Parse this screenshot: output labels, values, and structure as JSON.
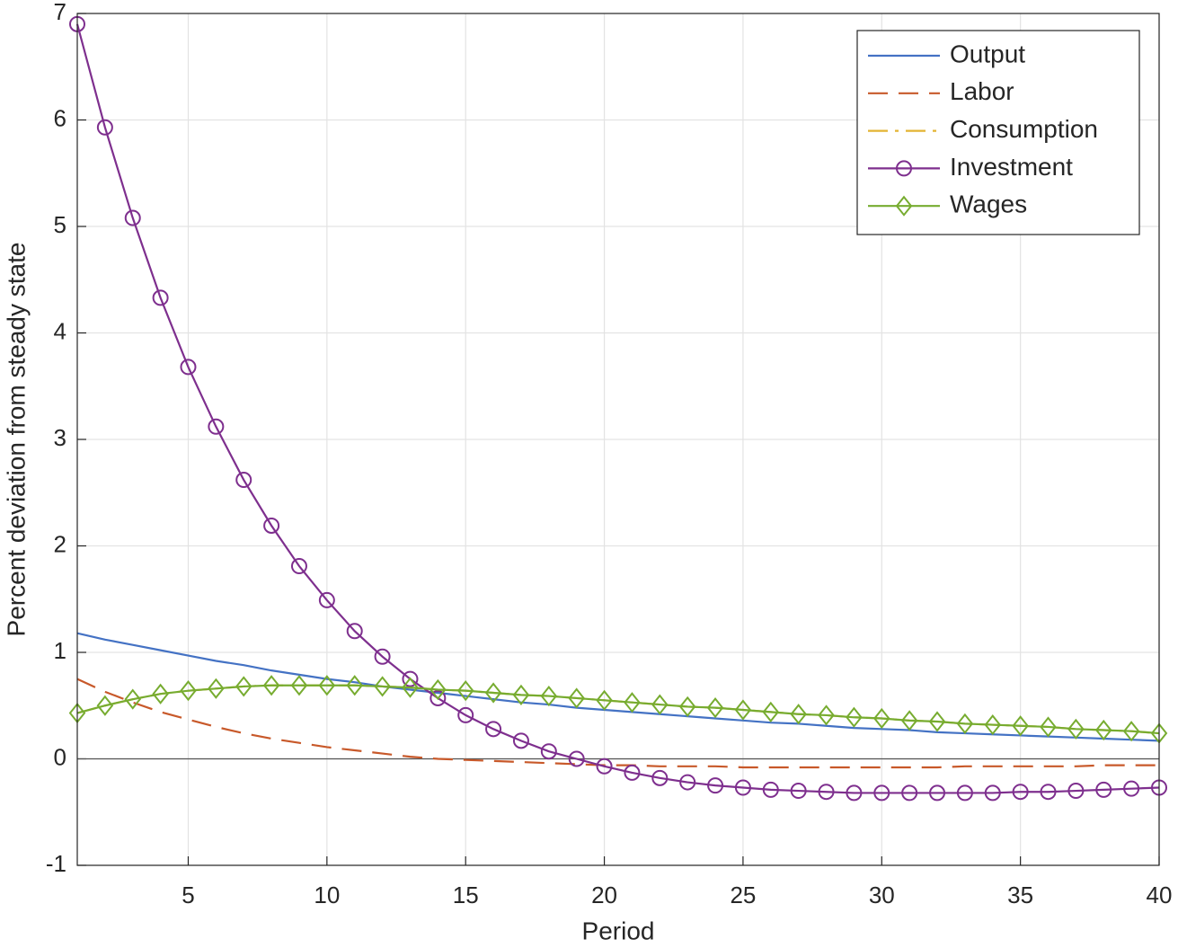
{
  "chart_data": {
    "type": "line",
    "xlabel": "Period",
    "ylabel": "Percent deviation from steady state",
    "x": [
      1,
      2,
      3,
      4,
      5,
      6,
      7,
      8,
      9,
      10,
      11,
      12,
      13,
      14,
      15,
      16,
      17,
      18,
      19,
      20,
      21,
      22,
      23,
      24,
      25,
      26,
      27,
      28,
      29,
      30,
      31,
      32,
      33,
      34,
      35,
      36,
      37,
      38,
      39,
      40
    ],
    "xlim": [
      1,
      40
    ],
    "xticks": [
      5,
      10,
      15,
      20,
      25,
      30,
      35,
      40
    ],
    "ylim": [
      -1,
      7
    ],
    "yticks": [
      -1,
      0,
      1,
      2,
      3,
      4,
      5,
      6,
      7
    ],
    "grid": true,
    "legend": "upper right",
    "series": [
      {
        "name": "Output",
        "color": "#4472c4",
        "style": "solid",
        "marker": "none",
        "values": [
          1.18,
          1.12,
          1.07,
          1.02,
          0.97,
          0.92,
          0.88,
          0.83,
          0.79,
          0.75,
          0.72,
          0.68,
          0.65,
          0.62,
          0.59,
          0.56,
          0.53,
          0.51,
          0.48,
          0.46,
          0.44,
          0.42,
          0.4,
          0.38,
          0.36,
          0.34,
          0.33,
          0.31,
          0.29,
          0.28,
          0.27,
          0.25,
          0.24,
          0.23,
          0.22,
          0.21,
          0.2,
          0.19,
          0.18,
          0.17
        ]
      },
      {
        "name": "Labor",
        "color": "#c8592a",
        "style": "dashed",
        "marker": "none",
        "values": [
          0.75,
          0.63,
          0.53,
          0.44,
          0.37,
          0.3,
          0.24,
          0.19,
          0.15,
          0.11,
          0.08,
          0.05,
          0.02,
          0.0,
          -0.01,
          -0.02,
          -0.03,
          -0.04,
          -0.05,
          -0.06,
          -0.06,
          -0.07,
          -0.07,
          -0.07,
          -0.08,
          -0.08,
          -0.08,
          -0.08,
          -0.08,
          -0.08,
          -0.08,
          -0.08,
          -0.07,
          -0.07,
          -0.07,
          -0.07,
          -0.07,
          -0.06,
          -0.06,
          -0.06
        ]
      },
      {
        "name": "Consumption",
        "color": "#e3b433",
        "style": "dashdot",
        "marker": "none",
        "values": [
          0.43,
          0.5,
          0.56,
          0.61,
          0.64,
          0.66,
          0.68,
          0.69,
          0.69,
          0.69,
          0.69,
          0.68,
          0.67,
          0.65,
          0.64,
          0.62,
          0.6,
          0.59,
          0.57,
          0.55,
          0.53,
          0.51,
          0.49,
          0.48,
          0.46,
          0.44,
          0.42,
          0.41,
          0.39,
          0.38,
          0.36,
          0.35,
          0.33,
          0.32,
          0.31,
          0.3,
          0.28,
          0.27,
          0.26,
          0.24
        ]
      },
      {
        "name": "Investment",
        "color": "#7e2f8e",
        "style": "solid",
        "marker": "circle",
        "values": [
          6.9,
          5.93,
          5.08,
          4.33,
          3.68,
          3.12,
          2.62,
          2.19,
          1.81,
          1.49,
          1.2,
          0.96,
          0.75,
          0.57,
          0.41,
          0.28,
          0.17,
          0.07,
          0.0,
          -0.07,
          -0.13,
          -0.18,
          -0.22,
          -0.25,
          -0.27,
          -0.29,
          -0.3,
          -0.31,
          -0.32,
          -0.32,
          -0.32,
          -0.32,
          -0.32,
          -0.32,
          -0.31,
          -0.31,
          -0.3,
          -0.29,
          -0.28,
          -0.27
        ]
      },
      {
        "name": "Wages",
        "color": "#77ac30",
        "style": "solid",
        "marker": "diamond",
        "values": [
          0.43,
          0.5,
          0.56,
          0.61,
          0.64,
          0.66,
          0.68,
          0.69,
          0.69,
          0.69,
          0.69,
          0.68,
          0.67,
          0.65,
          0.64,
          0.62,
          0.6,
          0.59,
          0.57,
          0.55,
          0.53,
          0.51,
          0.49,
          0.48,
          0.46,
          0.44,
          0.42,
          0.41,
          0.39,
          0.38,
          0.36,
          0.35,
          0.33,
          0.32,
          0.31,
          0.3,
          0.28,
          0.27,
          0.26,
          0.24
        ]
      }
    ]
  }
}
